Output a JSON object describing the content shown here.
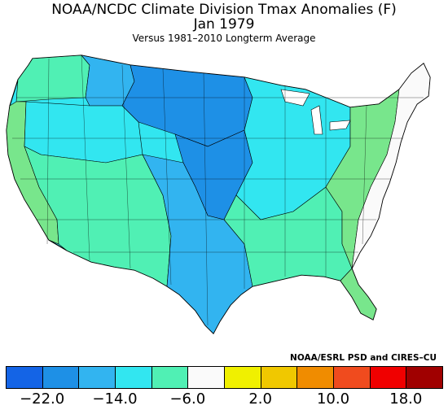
{
  "titles": {
    "line1": "NOAA/NCDC Climate Division Tmax Anomalies (F)",
    "line2": "Jan 1979",
    "line3": "Versus 1981–2010 Longterm Average"
  },
  "credit": "NOAA/ESRL PSD and CIRES–CU",
  "legend": {
    "colors": [
      "#1464e6",
      "#1e90e6",
      "#32b4f0",
      "#32e6f0",
      "#50f0b4",
      "#fafafa",
      "#f0f000",
      "#f0c800",
      "#f08c00",
      "#f04b1e",
      "#f00000",
      "#a00000"
    ],
    "ticks": [
      "−22.0",
      "−14.0",
      "−6.0",
      "2.0",
      "10.0",
      "18.0"
    ]
  },
  "map_regions": [
    {
      "name": "pacific-coast",
      "color": "#78e68c"
    },
    {
      "name": "northwest",
      "color": "#50f0b4"
    },
    {
      "name": "northern-rockies",
      "color": "#32b4f0"
    },
    {
      "name": "northern-plains",
      "color": "#1e90e6"
    },
    {
      "name": "central-plains",
      "color": "#1e90e6"
    },
    {
      "name": "southwest",
      "color": "#50f0b4"
    },
    {
      "name": "great-basin",
      "color": "#32e6f0"
    },
    {
      "name": "southern-plains",
      "color": "#32b4f0"
    },
    {
      "name": "midwest",
      "color": "#32e6f0"
    },
    {
      "name": "southeast",
      "color": "#50f0b4"
    },
    {
      "name": "mid-atlantic",
      "color": "#78e68c"
    },
    {
      "name": "northeast",
      "color": "#fafafa"
    },
    {
      "name": "florida",
      "color": "#78e68c"
    }
  ]
}
